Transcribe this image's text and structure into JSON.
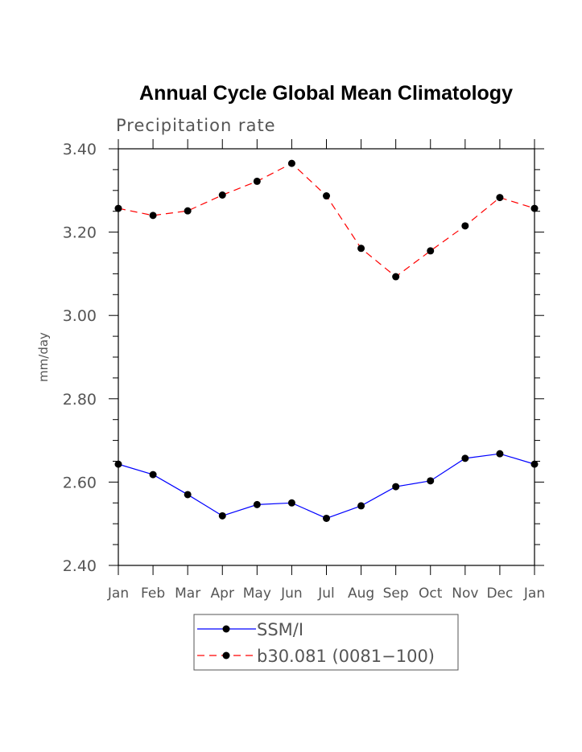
{
  "chart_data": {
    "type": "line",
    "title": "Annual Cycle Global Mean Climatology",
    "subtitle": "Precipitation rate",
    "xlabel": "",
    "ylabel": "mm/day",
    "categories": [
      "Jan",
      "Feb",
      "Mar",
      "Apr",
      "May",
      "Jun",
      "Jul",
      "Aug",
      "Sep",
      "Oct",
      "Nov",
      "Dec",
      "Jan"
    ],
    "ylim": [
      2.4,
      3.4
    ],
    "yticks": [
      "2.40",
      "2.60",
      "2.80",
      "3.00",
      "3.20",
      "3.40"
    ],
    "grid": false,
    "legend_position": "bottom",
    "series": [
      {
        "name": "SSM/I",
        "color": "#0000ff",
        "dash": "solid",
        "marker": "circle",
        "values": [
          2.643,
          2.618,
          2.57,
          2.519,
          2.546,
          2.55,
          2.513,
          2.543,
          2.589,
          2.603,
          2.657,
          2.668,
          2.643
        ]
      },
      {
        "name": "b30.081 (0081−100)",
        "color": "#ff0000",
        "dash": "dashed",
        "marker": "circle",
        "values": [
          3.257,
          3.24,
          3.251,
          3.289,
          3.322,
          3.365,
          3.287,
          3.161,
          3.093,
          3.155,
          3.215,
          3.283,
          3.257
        ]
      }
    ]
  }
}
